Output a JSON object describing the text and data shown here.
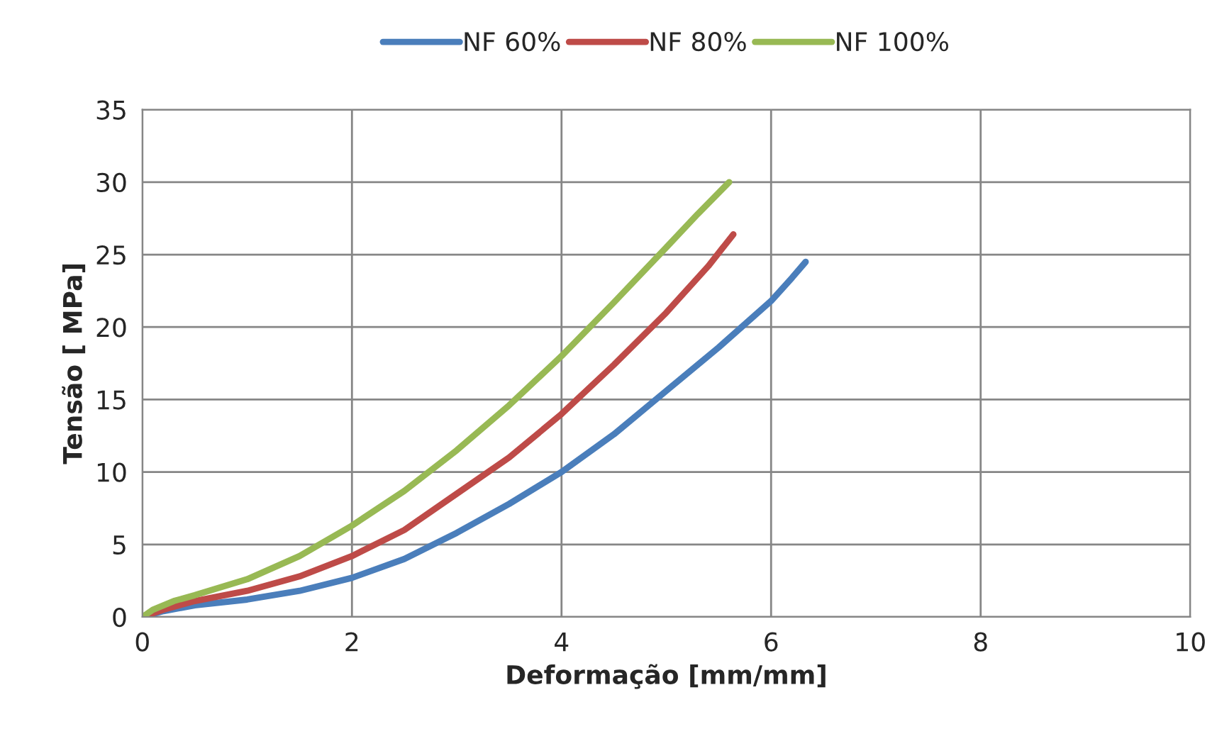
{
  "chart_data": {
    "type": "line",
    "xlabel": "Deformação [mm/mm]",
    "ylabel": "Tensão [ MPa]",
    "xlim": [
      0,
      10
    ],
    "xticks": [
      0,
      2,
      4,
      6,
      8,
      10
    ],
    "ylim": [
      0,
      35
    ],
    "yticks": [
      0,
      5,
      10,
      15,
      20,
      25,
      30,
      35
    ],
    "grid": true,
    "legend": "top",
    "marker": "none",
    "line_style": "solid",
    "series": [
      {
        "name": "NF 60%",
        "color": "#4a7ebb",
        "x": [
          0,
          0.2,
          0.5,
          1,
          1.5,
          2,
          2.5,
          3,
          3.5,
          4,
          4.5,
          5,
          5.5,
          6,
          6.2,
          6.33
        ],
        "values": [
          0,
          0.4,
          0.8,
          1.2,
          1.8,
          2.7,
          4.0,
          5.8,
          7.8,
          10,
          12.6,
          15.6,
          18.6,
          21.8,
          23.4,
          24.5
        ]
      },
      {
        "name": "NF 80%",
        "color": "#be4b48",
        "x": [
          0,
          0.2,
          0.5,
          1,
          1.5,
          2,
          2.5,
          3,
          3.5,
          4,
          4.5,
          5,
          5.4,
          5.64
        ],
        "values": [
          0,
          0.5,
          1.1,
          1.8,
          2.8,
          4.2,
          6.0,
          8.5,
          11.0,
          14.0,
          17.4,
          21.0,
          24.2,
          26.4
        ]
      },
      {
        "name": "NF 100%",
        "color": "#98b954",
        "x": [
          0,
          0.1,
          0.3,
          0.5,
          1,
          1.5,
          2,
          2.5,
          3,
          3.5,
          4,
          4.5,
          5,
          5.3,
          5.6
        ],
        "values": [
          0,
          0.5,
          1.1,
          1.5,
          2.6,
          4.2,
          6.3,
          8.7,
          11.5,
          14.6,
          18.0,
          21.7,
          25.5,
          27.8,
          30.0
        ]
      }
    ]
  }
}
